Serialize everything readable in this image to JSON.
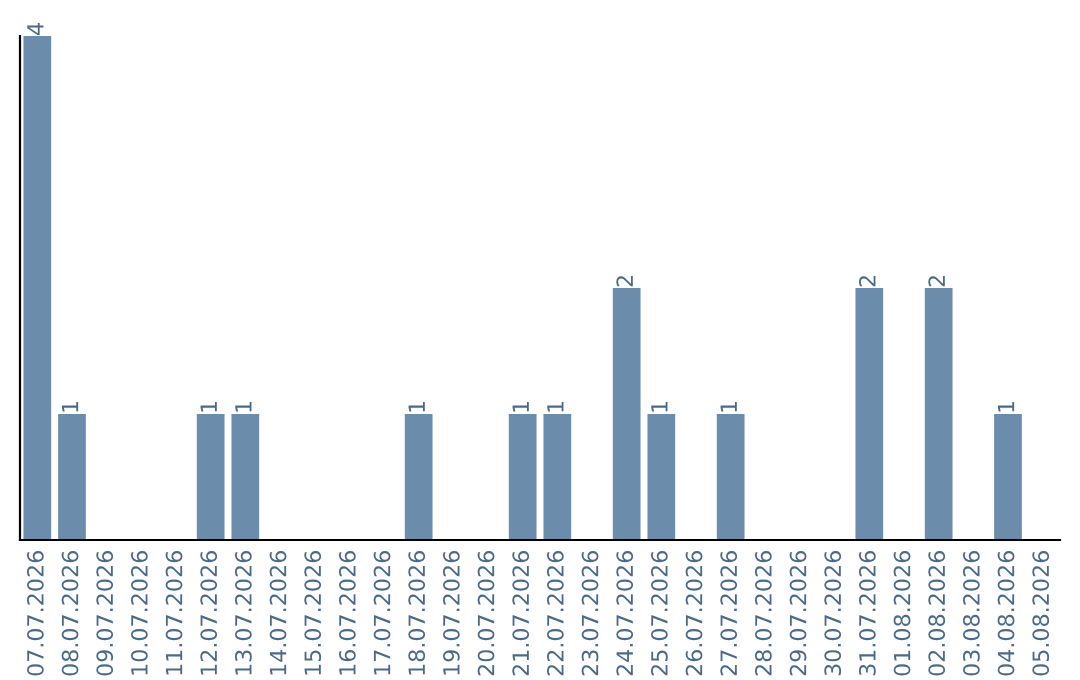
{
  "chart_data": {
    "type": "bar",
    "categories": [
      "07.07.2026",
      "08.07.2026",
      "09.07.2026",
      "10.07.2026",
      "11.07.2026",
      "12.07.2026",
      "13.07.2026",
      "14.07.2026",
      "15.07.2026",
      "16.07.2026",
      "17.07.2026",
      "18.07.2026",
      "19.07.2026",
      "20.07.2026",
      "21.07.2026",
      "22.07.2026",
      "23.07.2026",
      "24.07.2026",
      "25.07.2026",
      "26.07.2026",
      "27.07.2026",
      "28.07.2026",
      "29.07.2026",
      "30.07.2026",
      "31.07.2026",
      "01.08.2026",
      "02.08.2026",
      "03.08.2026",
      "04.08.2026",
      "05.08.2026"
    ],
    "values": [
      4,
      1,
      0,
      0,
      0,
      1,
      1,
      0,
      0,
      0,
      0,
      1,
      0,
      0,
      1,
      1,
      0,
      2,
      1,
      0,
      1,
      0,
      0,
      0,
      2,
      0,
      2,
      0,
      1,
      0
    ],
    "value_labels": [
      "4",
      "1",
      null,
      null,
      null,
      "1",
      "1",
      null,
      null,
      null,
      null,
      "1",
      null,
      null,
      "1",
      "1",
      null,
      "2",
      "1",
      null,
      "1",
      null,
      null,
      null,
      "2",
      null,
      "2",
      null,
      "1",
      null
    ],
    "color": "#6b8cab",
    "tick_labels": "x",
    "grid": false,
    "legend": false
  }
}
